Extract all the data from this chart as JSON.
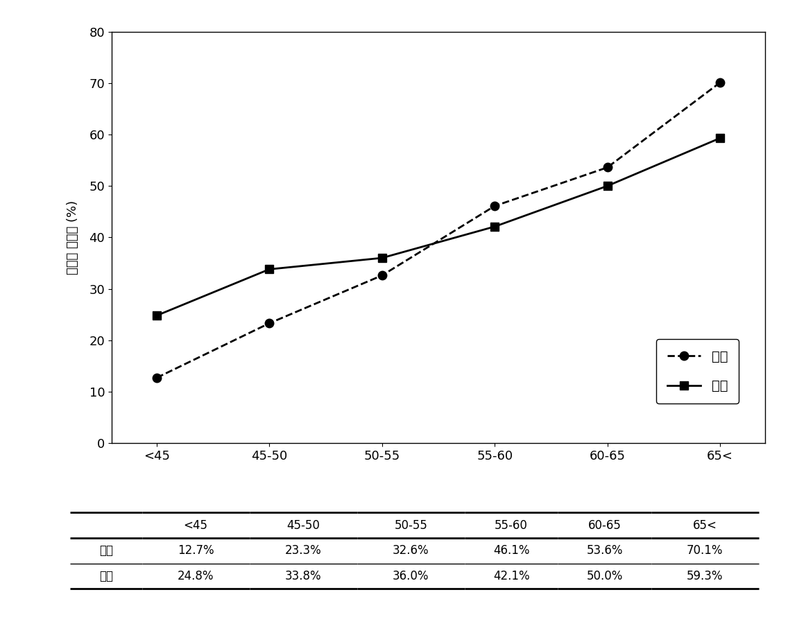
{
  "categories": [
    "<45",
    "45-50",
    "50-55",
    "55-60",
    "60-65",
    "65<"
  ],
  "yeoja_values": [
    12.7,
    23.3,
    32.6,
    46.1,
    53.6,
    70.1
  ],
  "namja_values": [
    24.8,
    33.8,
    36.0,
    42.1,
    50.0,
    59.3
  ],
  "yeoja_label": "여자",
  "namja_label": "남자",
  "ylabel": "고혁압 유병률 (%)",
  "ylim": [
    0,
    80
  ],
  "yticks": [
    0,
    10,
    20,
    30,
    40,
    50,
    60,
    70,
    80
  ],
  "line_color": "#000000",
  "table_header": [
    "",
    "<45",
    "45-50",
    "50-55",
    "55-60",
    "60-65",
    "65<"
  ],
  "table_row1_label": "여성",
  "table_row2_label": "남성",
  "table_row1_values": [
    "12.7%",
    "23.3%",
    "32.6%",
    "46.1%",
    "53.6%",
    "70.1%"
  ],
  "table_row2_values": [
    "24.8%",
    "33.8%",
    "36.0%",
    "42.1%",
    "50.0%",
    "59.3%"
  ]
}
